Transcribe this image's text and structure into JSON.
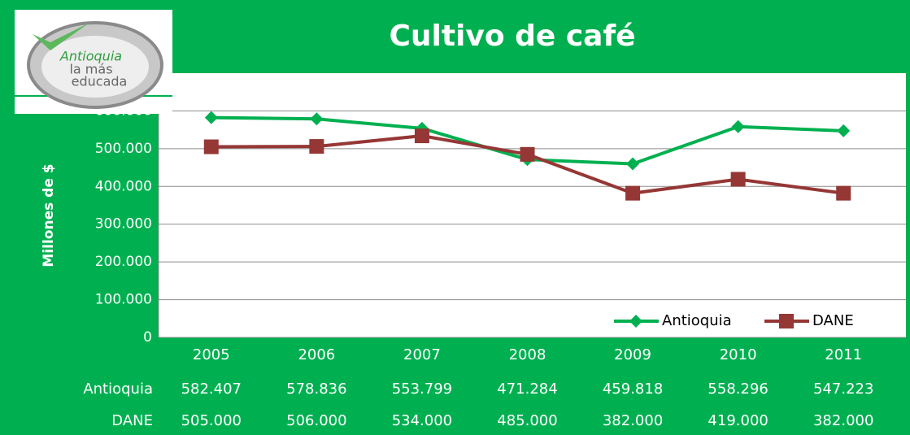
{
  "chart_data": {
    "type": "line",
    "title": "Cultivo de café",
    "logo": [
      "Antioquia",
      "la más",
      "educada"
    ],
    "y_label": "Millones de $",
    "categories": [
      "2005",
      "2006",
      "2007",
      "2008",
      "2009",
      "2010",
      "2011"
    ],
    "series": [
      {
        "name": "Antioquia",
        "color": "#00b050",
        "marker": "diamond",
        "values": [
          582407,
          578836,
          553799,
          471284,
          459818,
          558296,
          547223
        ],
        "value_labels": [
          "582.407",
          "578.836",
          "553.799",
          "471.284",
          "459.818",
          "558.296",
          "547.223"
        ]
      },
      {
        "name": "DANE",
        "color": "#953735",
        "marker": "square",
        "values": [
          505000,
          506000,
          534000,
          485000,
          382000,
          419000,
          382000
        ],
        "value_labels": [
          "505.000",
          "506.000",
          "534.000",
          "485.000",
          "382.000",
          "419.000",
          "382.000"
        ]
      }
    ],
    "ylim": [
      0,
      700000
    ],
    "yticks": [
      0,
      {
        "value": 100000,
        "label": "100.000"
      },
      {
        "value": 200000,
        "label": "200.000"
      },
      {
        "value": 300000,
        "label": "300.000"
      },
      {
        "value": 400000,
        "label": "400.000"
      },
      {
        "value": 500000,
        "label": "500.000"
      },
      {
        "value": 600000,
        "label": "600.000"
      }
    ],
    "grid": true,
    "legend": "lower right"
  }
}
